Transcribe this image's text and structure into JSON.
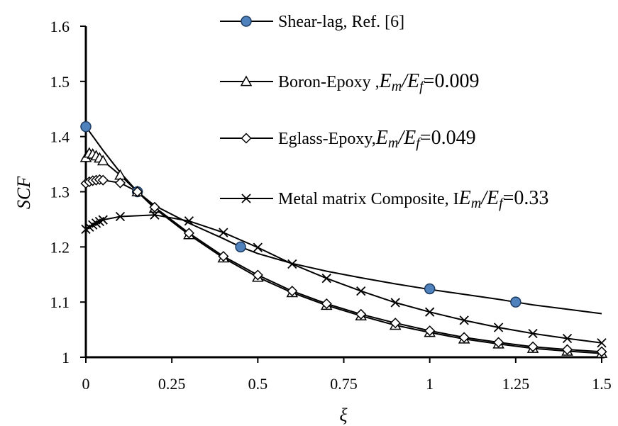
{
  "chart_data": {
    "type": "line",
    "xlabel": "ξ",
    "ylabel": "SCF",
    "xlim": [
      0,
      1.5
    ],
    "ylim": [
      1.0,
      1.6
    ],
    "xticks": [
      0,
      0.25,
      0.5,
      0.75,
      1,
      1.25,
      1.5
    ],
    "xtick_labels": [
      "0",
      "0.25",
      "0.5",
      "0.75",
      "1",
      "1.25",
      "1.5"
    ],
    "yticks": [
      1.0,
      1.1,
      1.2,
      1.3,
      1.4,
      1.5,
      1.6
    ],
    "ytick_labels": [
      "1",
      "1.1",
      "1.2",
      "1.3",
      "1.4",
      "1.5",
      "1.6"
    ],
    "grid": false,
    "legend_position": "top-right",
    "series": [
      {
        "name": "Shear-lag, Ref. [6]",
        "legend_prefix": "Shear-lag, Ref. [6]",
        "legend_ratio": "",
        "legend_value": "",
        "marker": "circle",
        "color": "#4f81bd",
        "curve_x": [
          0,
          0.05,
          0.1,
          0.15,
          0.2,
          0.3,
          0.4,
          0.45,
          0.5,
          0.6,
          0.7,
          0.8,
          0.9,
          1.0,
          1.1,
          1.2,
          1.25,
          1.3,
          1.4,
          1.5
        ],
        "curve_y": [
          1.418,
          1.375,
          1.335,
          1.3,
          1.275,
          1.243,
          1.215,
          1.2,
          1.188,
          1.17,
          1.156,
          1.144,
          1.133,
          1.123,
          1.114,
          1.105,
          1.1,
          1.095,
          1.087,
          1.079
        ],
        "marker_x": [
          0,
          0.15,
          0.45,
          1.0,
          1.25
        ],
        "marker_y": [
          1.418,
          1.3,
          1.2,
          1.124,
          1.1
        ]
      },
      {
        "name": "Boron-Epoxy",
        "legend_prefix": "Boron-Epoxy ,",
        "legend_ratio": "Em/Ef",
        "legend_value": "=0.009",
        "marker": "triangle",
        "color": "#ffffff",
        "x": [
          0,
          0.01,
          0.02,
          0.03,
          0.04,
          0.05,
          0.1,
          0.15,
          0.2,
          0.3,
          0.4,
          0.5,
          0.6,
          0.7,
          0.8,
          0.9,
          1.0,
          1.1,
          1.2,
          1.3,
          1.4,
          1.5
        ],
        "y": [
          1.362,
          1.37,
          1.368,
          1.365,
          1.361,
          1.356,
          1.33,
          1.3,
          1.27,
          1.222,
          1.18,
          1.145,
          1.117,
          1.094,
          1.075,
          1.058,
          1.045,
          1.033,
          1.024,
          1.016,
          1.011,
          1.007
        ]
      },
      {
        "name": "Eglass-Epoxy",
        "legend_prefix": "Eglass-Epoxy,",
        "legend_ratio": "Em/Ef",
        "legend_value": "=0.049",
        "marker": "diamond",
        "color": "#ffffff",
        "x": [
          0,
          0.01,
          0.02,
          0.03,
          0.04,
          0.05,
          0.1,
          0.15,
          0.2,
          0.3,
          0.4,
          0.5,
          0.6,
          0.7,
          0.8,
          0.9,
          1.0,
          1.1,
          1.2,
          1.3,
          1.4,
          1.5
        ],
        "y": [
          1.315,
          1.318,
          1.32,
          1.321,
          1.322,
          1.321,
          1.316,
          1.3,
          1.272,
          1.225,
          1.183,
          1.149,
          1.12,
          1.097,
          1.078,
          1.062,
          1.048,
          1.036,
          1.027,
          1.019,
          1.014,
          1.01
        ]
      },
      {
        "name": "Metal matrix Composite",
        "legend_prefix": "Metal matrix Composite, I",
        "legend_ratio": "Em/Ef",
        "legend_value": "=0.33",
        "marker": "x",
        "color": "#000000",
        "x": [
          0,
          0.01,
          0.02,
          0.03,
          0.04,
          0.05,
          0.1,
          0.2,
          0.3,
          0.4,
          0.5,
          0.6,
          0.7,
          0.8,
          0.9,
          1.0,
          1.1,
          1.2,
          1.3,
          1.4,
          1.5
        ],
        "y": [
          1.232,
          1.236,
          1.24,
          1.243,
          1.246,
          1.249,
          1.255,
          1.258,
          1.247,
          1.226,
          1.199,
          1.169,
          1.143,
          1.12,
          1.099,
          1.082,
          1.067,
          1.054,
          1.043,
          1.034,
          1.026
        ]
      }
    ]
  }
}
